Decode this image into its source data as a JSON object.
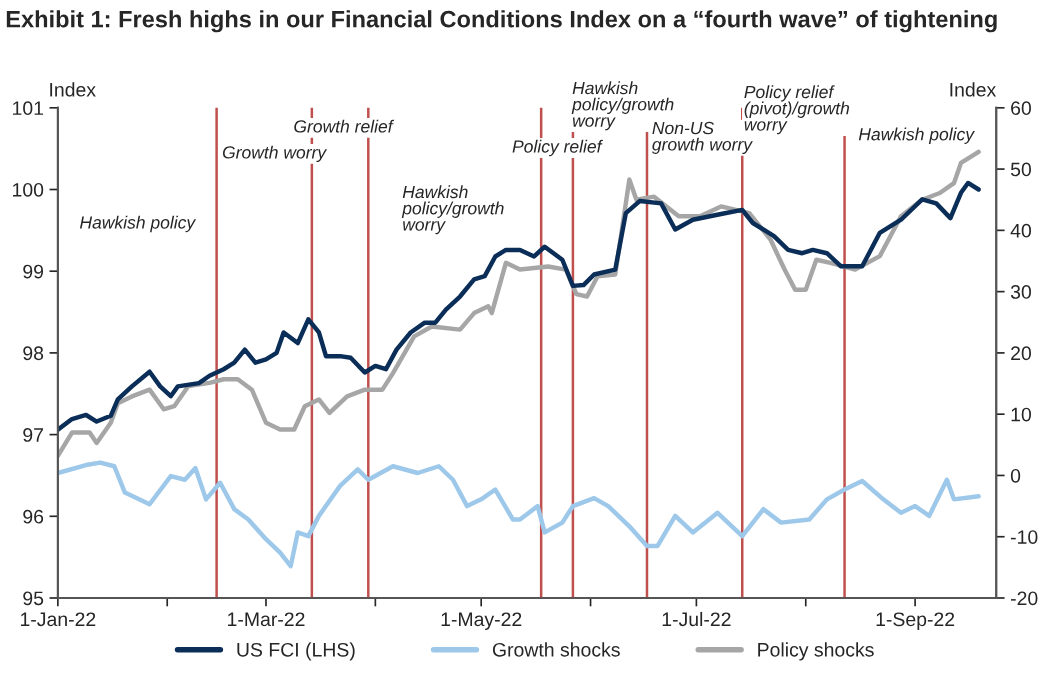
{
  "chart_data": {
    "type": "line",
    "title": "Exhibit 1: Fresh highs in our Financial Conditions Index on a “fourth wave” of tightening",
    "ylabel": "Index",
    "y2label": "Index",
    "series": [
      {
        "name": "US FCI (LHS)",
        "color": "#0b2e59",
        "x": [
          "2022-01-01",
          "2022-01-05",
          "2022-01-09",
          "2022-01-12",
          "2022-01-16",
          "2022-01-18",
          "2022-01-22",
          "2022-01-27",
          "2022-01-30",
          "2022-02-02",
          "2022-02-04",
          "2022-02-10",
          "2022-02-13",
          "2022-02-17",
          "2022-02-20",
          "2022-02-23",
          "2022-02-26",
          "2022-03-01",
          "2022-03-04",
          "2022-03-06",
          "2022-03-10",
          "2022-03-13",
          "2022-03-16",
          "2022-03-18",
          "2022-03-22",
          "2022-03-25",
          "2022-03-29",
          "2022-04-01",
          "2022-04-04",
          "2022-04-07",
          "2022-04-11",
          "2022-04-15",
          "2022-04-18",
          "2022-04-21",
          "2022-04-25",
          "2022-04-29",
          "2022-05-02",
          "2022-05-05",
          "2022-05-08",
          "2022-05-12",
          "2022-05-16",
          "2022-05-19",
          "2022-05-24",
          "2022-05-27",
          "2022-05-30",
          "2022-06-02",
          "2022-06-08",
          "2022-06-11",
          "2022-06-15",
          "2022-06-21",
          "2022-06-25",
          "2022-06-30",
          "2022-07-08",
          "2022-07-14",
          "2022-07-17",
          "2022-07-23",
          "2022-07-27",
          "2022-07-31",
          "2022-08-03",
          "2022-08-07",
          "2022-08-11",
          "2022-08-17",
          "2022-08-22",
          "2022-08-28",
          "2022-09-03",
          "2022-09-07",
          "2022-09-11",
          "2022-09-14",
          "2022-09-16",
          "2022-09-19"
        ],
        "values": [
          97.06,
          97.19,
          97.24,
          97.16,
          97.23,
          97.43,
          97.59,
          97.77,
          97.59,
          97.47,
          97.59,
          97.63,
          97.72,
          97.8,
          97.88,
          98.04,
          97.88,
          97.92,
          98.0,
          98.25,
          98.12,
          98.41,
          98.25,
          97.96,
          97.96,
          97.94,
          97.76,
          97.84,
          97.8,
          98.04,
          98.25,
          98.37,
          98.37,
          98.53,
          98.69,
          98.9,
          98.94,
          99.18,
          99.26,
          99.26,
          99.18,
          99.3,
          99.14,
          98.82,
          98.83,
          98.96,
          99.02,
          99.71,
          99.86,
          99.83,
          99.51,
          99.63,
          99.7,
          99.75,
          99.59,
          99.43,
          99.26,
          99.22,
          99.26,
          99.22,
          99.06,
          99.06,
          99.47,
          99.63,
          99.88,
          99.83,
          99.65,
          99.96,
          100.08,
          100.0
        ]
      },
      {
        "name": "Growth shocks",
        "color": "#9dc8ea",
        "axis": "y2",
        "x": [
          "2022-01-01",
          "2022-01-09",
          "2022-01-13",
          "2022-01-17",
          "2022-01-20",
          "2022-01-27",
          "2022-02-02",
          "2022-02-06",
          "2022-02-09",
          "2022-02-12",
          "2022-02-16",
          "2022-02-20",
          "2022-02-24",
          "2022-03-01",
          "2022-03-05",
          "2022-03-08",
          "2022-03-10",
          "2022-03-13",
          "2022-03-16",
          "2022-03-22",
          "2022-03-27",
          "2022-03-30",
          "2022-04-06",
          "2022-04-13",
          "2022-04-19",
          "2022-04-23",
          "2022-04-27",
          "2022-05-01",
          "2022-05-05",
          "2022-05-10",
          "2022-05-12",
          "2022-05-17",
          "2022-05-19",
          "2022-05-24",
          "2022-05-27",
          "2022-06-02",
          "2022-06-06",
          "2022-06-12",
          "2022-06-17",
          "2022-06-20",
          "2022-06-25",
          "2022-06-30",
          "2022-07-07",
          "2022-07-14",
          "2022-07-20",
          "2022-07-25",
          "2022-08-02",
          "2022-08-07",
          "2022-08-12",
          "2022-08-17",
          "2022-08-23",
          "2022-08-28",
          "2022-09-01",
          "2022-09-05",
          "2022-09-10",
          "2022-09-12",
          "2022-09-19"
        ],
        "values": [
          0.4,
          1.7,
          2.1,
          1.5,
          -2.8,
          -4.7,
          -0.1,
          -0.7,
          1.2,
          -3.9,
          -1.2,
          -5.5,
          -7.2,
          -10.4,
          -12.6,
          -14.8,
          -9.3,
          -9.9,
          -6.6,
          -1.7,
          1.0,
          -0.7,
          1.5,
          0.4,
          1.5,
          -0.7,
          -5.0,
          -3.9,
          -2.3,
          -7.2,
          -7.2,
          -5.0,
          -9.3,
          -7.7,
          -5.0,
          -3.7,
          -5.0,
          -8.3,
          -11.5,
          -11.5,
          -6.6,
          -9.3,
          -6.1,
          -9.9,
          -5.5,
          -7.7,
          -7.2,
          -3.9,
          -2.3,
          -0.9,
          -3.9,
          -6.1,
          -5.0,
          -6.6,
          -0.7,
          -3.9,
          -3.4
        ]
      },
      {
        "name": "Policy shocks",
        "color": "#a6a6a6",
        "axis": "y2",
        "x": [
          "2022-01-01",
          "2022-01-05",
          "2022-01-10",
          "2022-01-12",
          "2022-01-16",
          "2022-01-18",
          "2022-01-22",
          "2022-01-27",
          "2022-01-31",
          "2022-02-03",
          "2022-02-07",
          "2022-02-13",
          "2022-02-17",
          "2022-02-21",
          "2022-02-25",
          "2022-03-01",
          "2022-03-05",
          "2022-03-09",
          "2022-03-12",
          "2022-03-16",
          "2022-03-19",
          "2022-03-24",
          "2022-03-29",
          "2022-04-03",
          "2022-04-06",
          "2022-04-12",
          "2022-04-17",
          "2022-04-25",
          "2022-04-29",
          "2022-05-03",
          "2022-05-04",
          "2022-05-08",
          "2022-05-12",
          "2022-05-20",
          "2022-05-25",
          "2022-05-28",
          "2022-05-31",
          "2022-06-03",
          "2022-06-08",
          "2022-06-12",
          "2022-06-14",
          "2022-06-19",
          "2022-06-26",
          "2022-07-02",
          "2022-07-08",
          "2022-07-16",
          "2022-07-22",
          "2022-07-26",
          "2022-07-29",
          "2022-08-01",
          "2022-08-04",
          "2022-08-08",
          "2022-08-15",
          "2022-08-22",
          "2022-08-28",
          "2022-09-03",
          "2022-09-08",
          "2022-09-12",
          "2022-09-14",
          "2022-09-19"
        ],
        "values": [
          3.2,
          7.0,
          7.0,
          5.3,
          8.6,
          11.8,
          12.9,
          14.0,
          10.8,
          11.3,
          14.6,
          15.1,
          15.7,
          15.7,
          14.0,
          8.6,
          7.5,
          7.5,
          11.3,
          12.4,
          10.2,
          12.9,
          14.0,
          14.0,
          16.7,
          22.7,
          24.3,
          23.8,
          26.5,
          27.6,
          26.5,
          34.7,
          33.6,
          34.1,
          33.6,
          29.6,
          29.2,
          32.5,
          32.8,
          48.3,
          45.0,
          45.5,
          42.3,
          42.3,
          43.9,
          42.8,
          38.5,
          33.6,
          30.3,
          30.3,
          35.2,
          34.7,
          33.6,
          35.8,
          42.3,
          45.0,
          46.1,
          47.7,
          51.0,
          52.8
        ]
      }
    ],
    "xlim": [
      "2022-01-01",
      "2022-09-24"
    ],
    "xticks": [
      {
        "value": "2022-01-01",
        "label": "1-Jan-22"
      },
      {
        "value": "2022-02-01",
        "label": null
      },
      {
        "value": "2022-03-01",
        "label": "1-Mar-22"
      },
      {
        "value": "2022-04-01",
        "label": null
      },
      {
        "value": "2022-05-01",
        "label": "1-May-22"
      },
      {
        "value": "2022-06-01",
        "label": null
      },
      {
        "value": "2022-07-01",
        "label": "1-Jul-22"
      },
      {
        "value": "2022-08-01",
        "label": null
      },
      {
        "value": "2022-09-01",
        "label": "1-Sep-22"
      }
    ],
    "ylim": [
      95,
      101
    ],
    "yticks": [
      95,
      96,
      97,
      98,
      99,
      100,
      101
    ],
    "y2lim": [
      -20,
      60
    ],
    "y2ticks": [
      -20,
      -10,
      0,
      10,
      20,
      30,
      40,
      50,
      60
    ],
    "ref_lines": [
      {
        "axis": "x",
        "value": "2022-02-15",
        "color": "#c0504d"
      },
      {
        "axis": "x",
        "value": "2022-03-14",
        "color": "#c0504d"
      },
      {
        "axis": "x",
        "value": "2022-03-30",
        "color": "#c0504d"
      },
      {
        "axis": "x",
        "value": "2022-05-18",
        "color": "#c0504d"
      },
      {
        "axis": "x",
        "value": "2022-05-27",
        "color": "#c0504d"
      },
      {
        "axis": "x",
        "value": "2022-06-17",
        "color": "#c0504d"
      },
      {
        "axis": "x",
        "value": "2022-07-14",
        "color": "#c0504d"
      },
      {
        "axis": "x",
        "value": "2022-08-12",
        "color": "#c0504d"
      }
    ],
    "annotations": [
      "Hawkish policy",
      "Growth worry",
      "Growth relief",
      "Hawkish\npolicy/growth\nworry",
      "Policy relief",
      "Hawkish\npolicy/growth\nworry",
      "Non-US\ngrowth worry",
      "Policy relief\n(pivot)/growth\nworry",
      "Hawkish policy"
    ],
    "grid": false,
    "legend": "bottom",
    "line_style": "solid",
    "marker": "none"
  }
}
